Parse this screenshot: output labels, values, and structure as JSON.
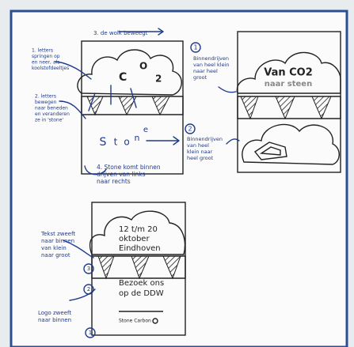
{
  "sketch_1": {
    "step_3": "3. de wolk beweegt",
    "step_1": [
      "1. letters",
      "springen op",
      "en neer, als",
      "koolstofdeeltjes"
    ],
    "cloud_letters": [
      "C",
      "O",
      "2"
    ],
    "step_2": [
      "2. letters",
      "bewegen",
      "naar beneden",
      "en veranderen",
      "ze in 'stone'"
    ],
    "stone_letters": [
      "S",
      "t",
      "o",
      "n",
      "e"
    ],
    "step_4": [
      "4. Stone komt binnen",
      "drijven van links",
      "naar rechts"
    ]
  },
  "sketch_2": {
    "marker_1": "1",
    "note_1": [
      "Binnendrijven",
      "van heel klein",
      "naar heel",
      "groot"
    ],
    "headline": [
      "Van CO2",
      "naar steen"
    ],
    "marker_2": "2",
    "note_2": [
      "Binnendrijven",
      "van heel",
      "klein naar",
      "heel groot"
    ]
  },
  "sketch_3": {
    "cloud_text": [
      "12 t/m 20",
      "oktober",
      "Eindhoven"
    ],
    "box_text": [
      "Bezoek ons",
      "op de DDW"
    ],
    "logo": "Stone Carbon",
    "note_text": [
      "Tekst zweeft",
      "naar binnen",
      "van klein",
      "naar groot"
    ],
    "marker_3": "3",
    "marker_2": "2",
    "note_logo": [
      "Logo zweeft",
      "naar binnen"
    ],
    "marker_1": "1"
  }
}
